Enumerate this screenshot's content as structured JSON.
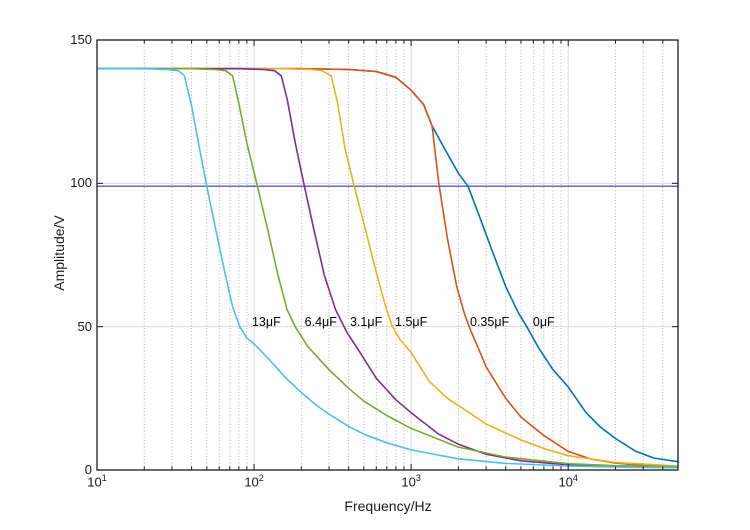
{
  "figure": {
    "background": "#ffffff"
  },
  "chart_data": {
    "type": "line",
    "title": "",
    "xlabel": "Frequency/Hz",
    "ylabel": "Amplitude/V",
    "x_scale": "log",
    "y_scale": "linear",
    "xlim": [
      10,
      50000
    ],
    "ylim": [
      0,
      150
    ],
    "x_ticks": [
      {
        "value": 10,
        "base": "10",
        "exp": "1"
      },
      {
        "value": 100,
        "base": "10",
        "exp": "2"
      },
      {
        "value": 1000,
        "base": "10",
        "exp": "3"
      },
      {
        "value": 10000,
        "base": "10",
        "exp": "4"
      }
    ],
    "y_ticks": [
      {
        "value": 0,
        "label": "0"
      },
      {
        "value": 50,
        "label": "50"
      },
      {
        "value": 100,
        "label": "100"
      },
      {
        "value": 150,
        "label": "150"
      }
    ],
    "grid": {
      "show": true,
      "x_major": [
        100,
        1000,
        10000
      ],
      "y_major": [
        50,
        100
      ],
      "x_minor": true,
      "major_color": "#d9d9d9",
      "minor_color": "#b3b3b3"
    },
    "axis_color": "#1a1a1a",
    "reference_line": {
      "y": 99,
      "color": "#3333cc"
    },
    "legend": "inline-labels",
    "series": [
      {
        "id": "curve-0uf",
        "name": "0μF",
        "color": "#0072BD",
        "label_anchor": {
          "f": 5960,
          "amp": 51.6
        },
        "points": [
          [
            10,
            140
          ],
          [
            200,
            140
          ],
          [
            400,
            139.7
          ],
          [
            600,
            139
          ],
          [
            800,
            137
          ],
          [
            1000,
            132.5
          ],
          [
            1200,
            127.5
          ],
          [
            1360,
            120
          ],
          [
            1600,
            113
          ],
          [
            2000,
            103.5
          ],
          [
            2300,
            99
          ],
          [
            2700,
            89
          ],
          [
            3200,
            78
          ],
          [
            4000,
            64
          ],
          [
            4800,
            55
          ],
          [
            5450,
            50
          ],
          [
            6500,
            42.5
          ],
          [
            8000,
            35
          ],
          [
            10000,
            29
          ],
          [
            13000,
            20
          ],
          [
            16000,
            15
          ],
          [
            20000,
            11
          ],
          [
            27000,
            6.5
          ],
          [
            35000,
            4.2
          ],
          [
            50000,
            2.9
          ]
        ]
      },
      {
        "id": "curve-0p35uf",
        "name": "0.35μF",
        "color": "#D95319",
        "label_anchor": {
          "f": 2370,
          "amp": 51.6
        },
        "points": [
          [
            10,
            140
          ],
          [
            200,
            140
          ],
          [
            400,
            139.7
          ],
          [
            600,
            139
          ],
          [
            800,
            137
          ],
          [
            1000,
            132.5
          ],
          [
            1200,
            127.5
          ],
          [
            1360,
            120
          ],
          [
            1500,
            100
          ],
          [
            1700,
            81
          ],
          [
            1950,
            64
          ],
          [
            2200,
            54
          ],
          [
            2400,
            48.5
          ],
          [
            2700,
            42
          ],
          [
            3000,
            36
          ],
          [
            4000,
            25
          ],
          [
            5000,
            18.5
          ],
          [
            7000,
            12
          ],
          [
            10000,
            6.5
          ],
          [
            14000,
            3.8
          ],
          [
            20000,
            2.4
          ],
          [
            30000,
            1.6
          ],
          [
            50000,
            1.2
          ]
        ]
      },
      {
        "id": "curve-1p5uf",
        "name": "1.5μF",
        "color": "#EDB120",
        "label_anchor": {
          "f": 790,
          "amp": 51.6
        },
        "points": [
          [
            10,
            140
          ],
          [
            150,
            140
          ],
          [
            230,
            139.7
          ],
          [
            270,
            139.3
          ],
          [
            310,
            137.5
          ],
          [
            340,
            128
          ],
          [
            380,
            112
          ],
          [
            434,
            99
          ],
          [
            500,
            86
          ],
          [
            580,
            72
          ],
          [
            680,
            58
          ],
          [
            760,
            50
          ],
          [
            850,
            45.5
          ],
          [
            1000,
            41
          ],
          [
            1300,
            31
          ],
          [
            1700,
            25
          ],
          [
            2200,
            21
          ],
          [
            3000,
            16
          ],
          [
            5000,
            10.5
          ],
          [
            7000,
            7.5
          ],
          [
            10000,
            5
          ],
          [
            20000,
            2.6
          ],
          [
            50000,
            1.4
          ]
        ]
      },
      {
        "id": "curve-3p1uf",
        "name": "3.1μF",
        "color": "#7E2F8E",
        "label_anchor": {
          "f": 408,
          "amp": 51.6
        },
        "points": [
          [
            10,
            140
          ],
          [
            80,
            140
          ],
          [
            115,
            139.7
          ],
          [
            135,
            139.3
          ],
          [
            149,
            137.5
          ],
          [
            163,
            129
          ],
          [
            183,
            114
          ],
          [
            209,
            99
          ],
          [
            240,
            84
          ],
          [
            280,
            68
          ],
          [
            330,
            56
          ],
          [
            390,
            48
          ],
          [
            460,
            42
          ],
          [
            600,
            32
          ],
          [
            800,
            24.5
          ],
          [
            1000,
            20
          ],
          [
            1500,
            12.5
          ],
          [
            2000,
            9
          ],
          [
            3000,
            5.5
          ],
          [
            5000,
            3.2
          ],
          [
            10000,
            1.8
          ],
          [
            20000,
            1.2
          ],
          [
            50000,
            0.9
          ]
        ]
      },
      {
        "id": "curve-6p4uf",
        "name": "6.4μF",
        "color": "#77AC30",
        "label_anchor": {
          "f": 210,
          "amp": 51.6
        },
        "points": [
          [
            10,
            140
          ],
          [
            40,
            140
          ],
          [
            56,
            139.7
          ],
          [
            66,
            139.3
          ],
          [
            73,
            137.5
          ],
          [
            80,
            128
          ],
          [
            90,
            114
          ],
          [
            105,
            99
          ],
          [
            122,
            84
          ],
          [
            142,
            68
          ],
          [
            162,
            56
          ],
          [
            185,
            49.5
          ],
          [
            220,
            43
          ],
          [
            300,
            35
          ],
          [
            400,
            28.5
          ],
          [
            500,
            24
          ],
          [
            700,
            19
          ],
          [
            1000,
            14.5
          ],
          [
            2000,
            8
          ],
          [
            4000,
            4.5
          ],
          [
            10000,
            2.2
          ],
          [
            20000,
            1.5
          ],
          [
            50000,
            1.1
          ]
        ]
      },
      {
        "id": "curve-13uf",
        "name": "13μF",
        "color": "#4DBEEE",
        "label_anchor": {
          "f": 97,
          "amp": 51.6
        },
        "points": [
          [
            10,
            140
          ],
          [
            20,
            140
          ],
          [
            28,
            139.7
          ],
          [
            33,
            139.3
          ],
          [
            36,
            137.5
          ],
          [
            40,
            127
          ],
          [
            45,
            112
          ],
          [
            50,
            99
          ],
          [
            57,
            84
          ],
          [
            65,
            69
          ],
          [
            73,
            57
          ],
          [
            81,
            50
          ],
          [
            90,
            46
          ],
          [
            100,
            44
          ],
          [
            125,
            38.5
          ],
          [
            160,
            32
          ],
          [
            200,
            27
          ],
          [
            250,
            22.5
          ],
          [
            300,
            19.5
          ],
          [
            400,
            15.2
          ],
          [
            500,
            12.5
          ],
          [
            700,
            9.5
          ],
          [
            1000,
            7
          ],
          [
            2000,
            3.9
          ],
          [
            4000,
            2.3
          ],
          [
            10000,
            1.4
          ],
          [
            20000,
            1
          ],
          [
            50000,
            0.8
          ]
        ]
      }
    ]
  }
}
